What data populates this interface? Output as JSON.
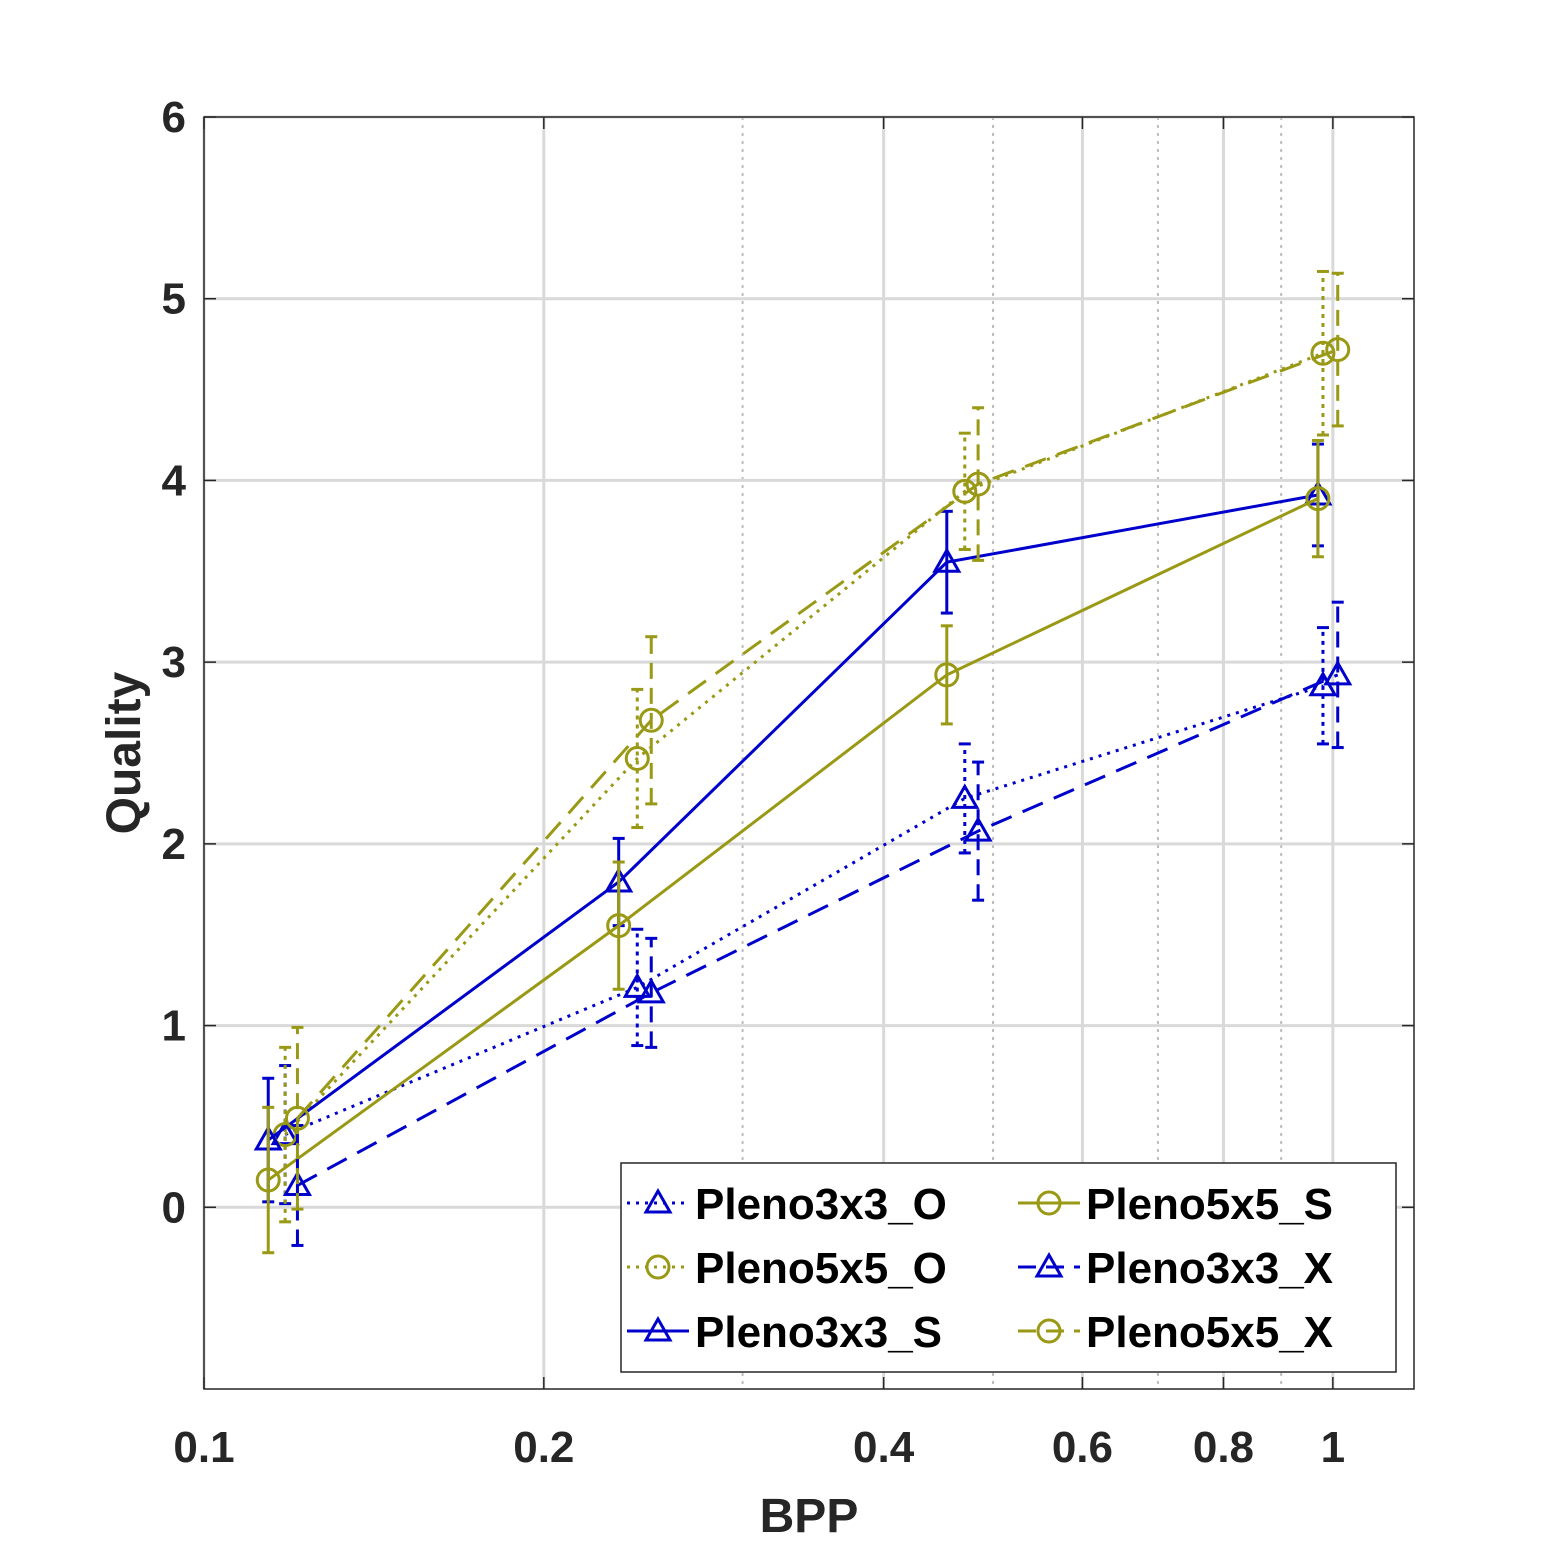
{
  "chart_data": {
    "type": "line",
    "xscale": "log",
    "xlabel": "BPP",
    "ylabel": "Quality",
    "xlim": [
      0.1,
      1.18
    ],
    "ylim": [
      -1,
      6
    ],
    "xticks": [
      {
        "value": 0.1,
        "label": "0.1"
      },
      {
        "value": 0.2,
        "label": "0.2"
      },
      {
        "value": 0.4,
        "label": "0.4"
      },
      {
        "value": 0.6,
        "label": "0.6"
      },
      {
        "value": 0.8,
        "label": "0.8"
      },
      {
        "value": 1.0,
        "label": "1"
      }
    ],
    "yticks": [
      {
        "value": 0,
        "label": "0"
      },
      {
        "value": 1,
        "label": "1"
      },
      {
        "value": 2,
        "label": "2"
      },
      {
        "value": 3,
        "label": "3"
      },
      {
        "value": 4,
        "label": "4"
      },
      {
        "value": 5,
        "label": "5"
      },
      {
        "value": 6,
        "label": "6"
      }
    ],
    "grid": true,
    "legend_position": "bottom-right",
    "colors": {
      "blue": "#0000cc",
      "olive": "#999915",
      "grid": "#d9d9d9",
      "axis": "#262626"
    },
    "series": [
      {
        "name": "Pleno3x3_O",
        "color": "#0000cc",
        "line": "dotted",
        "marker": "triangle",
        "x": [
          0.118,
          0.242,
          0.472,
          0.98
        ],
        "y": [
          0.4,
          1.21,
          2.25,
          2.87
        ],
        "err": [
          0.38,
          0.32,
          0.3,
          0.32
        ]
      },
      {
        "name": "Pleno5x5_O",
        "color": "#999915",
        "line": "dotted",
        "marker": "circle",
        "x": [
          0.118,
          0.242,
          0.472,
          0.98
        ],
        "y": [
          0.4,
          2.47,
          3.94,
          4.7
        ],
        "err": [
          0.48,
          0.38,
          0.32,
          0.45
        ]
      },
      {
        "name": "Pleno3x3_S",
        "color": "#0000cc",
        "line": "solid",
        "marker": "triangle",
        "x": [
          0.114,
          0.233,
          0.455,
          0.97
        ],
        "y": [
          0.37,
          1.79,
          3.55,
          3.92
        ],
        "err": [
          0.34,
          0.24,
          0.28,
          0.28
        ]
      },
      {
        "name": "Pleno5x5_S",
        "color": "#999915",
        "line": "solid",
        "marker": "circle",
        "x": [
          0.114,
          0.233,
          0.455,
          0.97
        ],
        "y": [
          0.15,
          1.55,
          2.93,
          3.9
        ],
        "err": [
          0.4,
          0.35,
          0.27,
          0.32
        ]
      },
      {
        "name": "Pleno3x3_X",
        "color": "#0000cc",
        "line": "dashed",
        "marker": "triangle",
        "x": [
          0.121,
          0.249,
          0.485,
          1.01
        ],
        "y": [
          0.12,
          1.18,
          2.07,
          2.93
        ],
        "err": [
          0.33,
          0.3,
          0.38,
          0.4
        ]
      },
      {
        "name": "Pleno5x5_X",
        "color": "#999915",
        "line": "dashed",
        "marker": "circle",
        "x": [
          0.121,
          0.249,
          0.485,
          1.01
        ],
        "y": [
          0.49,
          2.68,
          3.98,
          4.72
        ],
        "err": [
          0.5,
          0.46,
          0.42,
          0.42
        ]
      }
    ]
  }
}
